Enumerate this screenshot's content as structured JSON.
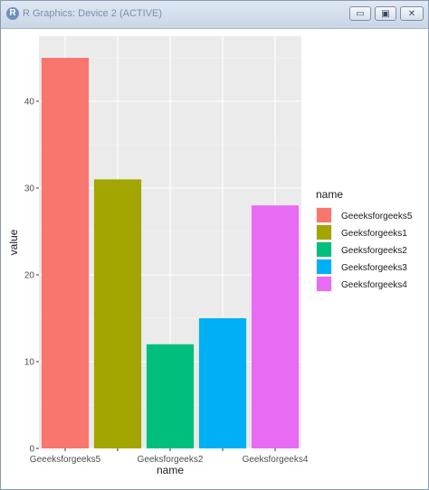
{
  "window": {
    "title": "R Graphics: Device 2 (ACTIVE)",
    "icon": "R-logo-icon",
    "controls": {
      "minimize": "▭",
      "maximize": "▣",
      "close": "✕"
    }
  },
  "chart_data": {
    "type": "bar",
    "categories": [
      "Geeeksforgeeks5",
      "Geeksforgeeks1",
      "Geeksforgeeks2",
      "Geeksforgeeks3",
      "Geeksforgeeks4"
    ],
    "values": [
      45,
      31,
      12,
      15,
      28
    ],
    "colors": [
      "#F8766D",
      "#A3A500",
      "#00BF7D",
      "#00B0F6",
      "#E76BF3"
    ],
    "x_tick_labels": [
      "Geeeksforgeeks5",
      "",
      "Geeksforgeeks2",
      "",
      "Geeksforgeeks4"
    ],
    "y_ticks": [
      0,
      10,
      20,
      30,
      40
    ],
    "ylim": [
      0,
      47.5
    ],
    "xlabel": "name",
    "ylabel": "value",
    "legend": {
      "title": "name",
      "placement": "right",
      "entries": [
        "Geeeksforgeeks5",
        "Geeksforgeeks1",
        "Geeksforgeeks2",
        "Geeksforgeeks3",
        "Geeksforgeeks4"
      ]
    },
    "grid": true,
    "panel_background": "#EBEBEB"
  }
}
